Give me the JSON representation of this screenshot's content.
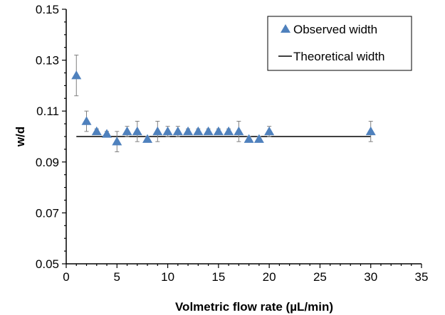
{
  "chart_data": {
    "type": "scatter",
    "xlabel": "Volmetric flow rate (µL/min)",
    "ylabel": "w/d",
    "xlim": [
      0,
      35
    ],
    "ylim": [
      0.05,
      0.15
    ],
    "x_ticks": [
      0,
      5,
      10,
      15,
      20,
      25,
      30,
      35
    ],
    "y_ticks": [
      0.05,
      0.07,
      0.09,
      0.11,
      0.13,
      0.15
    ],
    "x_tick_labels": [
      "0",
      "5",
      "10",
      "15",
      "20",
      "25",
      "30",
      "35"
    ],
    "y_tick_labels": [
      "0.05",
      "0.07",
      "0.09",
      "0.11",
      "0.13",
      "0.15"
    ],
    "grid": false,
    "legend_position": "top-right",
    "series": [
      {
        "name": "Observed width",
        "marker": "triangle",
        "color": "#4F81BD",
        "x": [
          1,
          2,
          3,
          4,
          5,
          6,
          7,
          8,
          9,
          10,
          11,
          12,
          13,
          14,
          15,
          16,
          17,
          18,
          19,
          20,
          30
        ],
        "y": [
          0.124,
          0.106,
          0.102,
          0.101,
          0.098,
          0.102,
          0.102,
          0.099,
          0.102,
          0.102,
          0.102,
          0.102,
          0.102,
          0.102,
          0.102,
          0.102,
          0.102,
          0.099,
          0.099,
          0.102,
          0.102
        ],
        "error": [
          0.008,
          0.004,
          0.001,
          0.001,
          0.004,
          0.002,
          0.004,
          0.001,
          0.004,
          0.002,
          0.002,
          0.001,
          0.001,
          0.001,
          0.001,
          0.001,
          0.004,
          0.001,
          0.001,
          0.002,
          0.004
        ]
      },
      {
        "name": "Theoretical width",
        "type": "line",
        "color": "#000000",
        "x": [
          1,
          30
        ],
        "y": [
          0.1,
          0.1
        ]
      }
    ]
  }
}
